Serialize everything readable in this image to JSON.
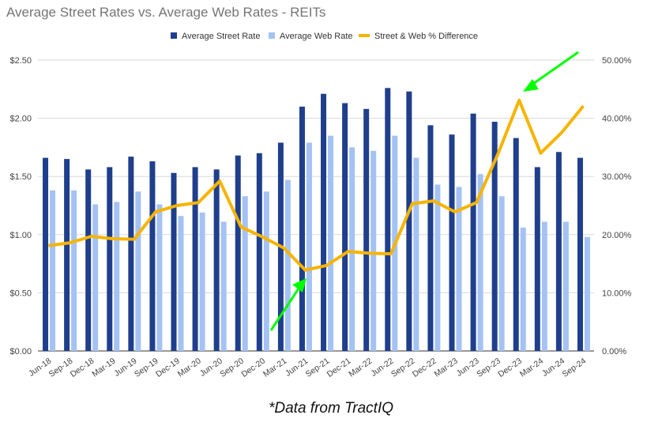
{
  "chart_data": {
    "type": "bar",
    "title": "Average Street Rates vs. Average Web Rates - REITs",
    "categories": [
      "Jun-18",
      "Sep-18",
      "Dec-18",
      "Mar-19",
      "Jun-19",
      "Sep-19",
      "Dec-19",
      "Mar-20",
      "Jun-20",
      "Sep-20",
      "Dec-20",
      "Mar-21",
      "Jun-21",
      "Sep-21",
      "Dec-21",
      "Mar-22",
      "Jun-22",
      "Sep-22",
      "Dec-22",
      "Mar-23",
      "Jun-23",
      "Sep-23",
      "Dec-23",
      "Mar-24",
      "Jun-24",
      "Sep-24"
    ],
    "series": [
      {
        "name": "Average Street Rate",
        "type": "bar",
        "axis": "left",
        "color": "#1f3f8c",
        "values": [
          1.66,
          1.65,
          1.56,
          1.58,
          1.67,
          1.63,
          1.53,
          1.58,
          1.56,
          1.68,
          1.7,
          1.79,
          2.1,
          2.21,
          2.13,
          2.08,
          2.26,
          2.23,
          1.94,
          1.86,
          2.04,
          1.97,
          1.83,
          1.58,
          1.71,
          1.66
        ]
      },
      {
        "name": "Average Web Rate",
        "type": "bar",
        "axis": "left",
        "color": "#a4c2f4",
        "values": [
          1.38,
          1.38,
          1.26,
          1.28,
          1.37,
          1.26,
          1.16,
          1.19,
          1.11,
          1.33,
          1.37,
          1.47,
          1.79,
          1.85,
          1.75,
          1.72,
          1.85,
          1.66,
          1.43,
          1.41,
          1.52,
          1.33,
          1.06,
          1.11,
          1.11,
          0.98
        ]
      },
      {
        "name": "Street & Web % Difference",
        "type": "line",
        "axis": "right",
        "color": "#f6b400",
        "values": [
          18.1,
          18.6,
          19.7,
          19.3,
          19.2,
          23.9,
          25.0,
          25.5,
          29.2,
          21.3,
          19.6,
          17.7,
          13.9,
          14.7,
          17.1,
          16.8,
          16.7,
          25.3,
          25.8,
          23.9,
          25.5,
          33.8,
          43.1,
          34.0,
          37.6,
          42.1
        ]
      }
    ],
    "y_left": {
      "ylim": [
        0,
        2.5
      ],
      "ticks": [
        "$0.00",
        "$0.50",
        "$1.00",
        "$1.50",
        "$2.00",
        "$2.50"
      ]
    },
    "y_right": {
      "ylim": [
        0,
        50
      ],
      "ticks": [
        "0.00%",
        "10.00%",
        "20.00%",
        "30.00%",
        "40.00%",
        "50.00%"
      ]
    },
    "grid": true,
    "legend": "top-right",
    "annotation_color": "#00ff00"
  },
  "footnote": "*Data from TractIQ"
}
